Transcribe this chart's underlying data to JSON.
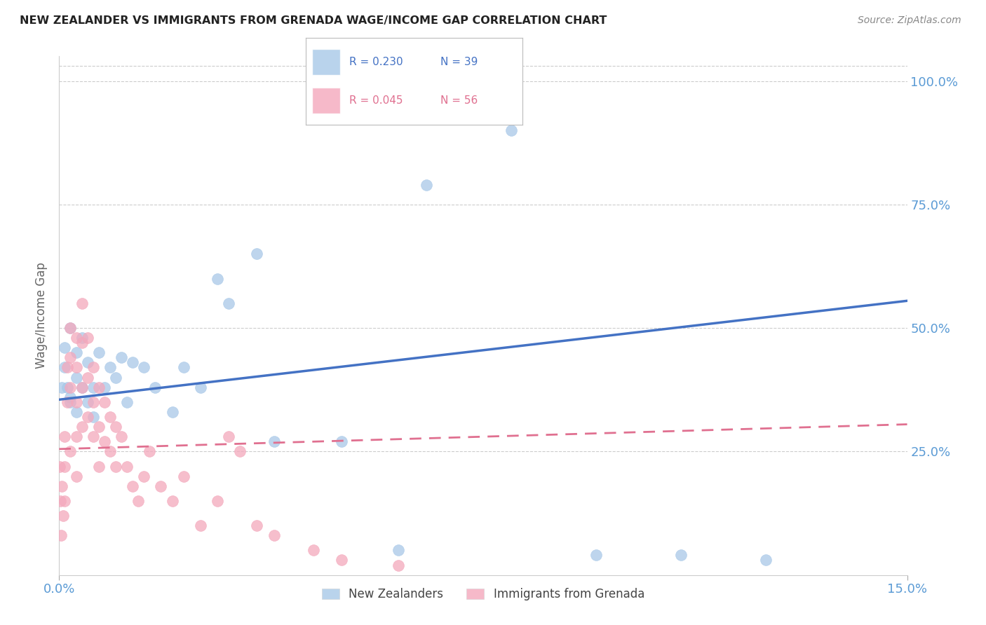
{
  "title": "NEW ZEALANDER VS IMMIGRANTS FROM GRENADA WAGE/INCOME GAP CORRELATION CHART",
  "source": "Source: ZipAtlas.com",
  "ylabel": "Wage/Income Gap",
  "xlabel": "",
  "xlim": [
    0.0,
    0.15
  ],
  "ylim": [
    0.0,
    1.05
  ],
  "ytick_labels": [
    "25.0%",
    "50.0%",
    "75.0%",
    "100.0%"
  ],
  "ytick_positions": [
    0.25,
    0.5,
    0.75,
    1.0
  ],
  "xtick_labels": [
    "0.0%",
    "15.0%"
  ],
  "xtick_positions": [
    0.0,
    0.15
  ],
  "background_color": "#ffffff",
  "grid_color": "#cccccc",
  "blue_color": "#a8c8e8",
  "pink_color": "#f4a8bc",
  "blue_line_color": "#4472c4",
  "pink_line_color": "#e07090",
  "label_color": "#5b9bd5",
  "R_blue": 0.23,
  "N_blue": 39,
  "R_pink": 0.045,
  "N_pink": 56,
  "blue_scatter_x": [
    0.0005,
    0.001,
    0.001,
    0.0015,
    0.002,
    0.002,
    0.002,
    0.003,
    0.003,
    0.003,
    0.004,
    0.004,
    0.005,
    0.005,
    0.006,
    0.006,
    0.007,
    0.008,
    0.009,
    0.01,
    0.011,
    0.012,
    0.013,
    0.015,
    0.017,
    0.02,
    0.022,
    0.025,
    0.028,
    0.03,
    0.035,
    0.038,
    0.05,
    0.06,
    0.065,
    0.08,
    0.095,
    0.11,
    0.125
  ],
  "blue_scatter_y": [
    0.38,
    0.42,
    0.46,
    0.38,
    0.36,
    0.5,
    0.35,
    0.45,
    0.4,
    0.33,
    0.48,
    0.38,
    0.35,
    0.43,
    0.38,
    0.32,
    0.45,
    0.38,
    0.42,
    0.4,
    0.44,
    0.35,
    0.43,
    0.42,
    0.38,
    0.33,
    0.42,
    0.38,
    0.6,
    0.55,
    0.65,
    0.27,
    0.27,
    0.05,
    0.79,
    0.9,
    0.04,
    0.04,
    0.03
  ],
  "pink_scatter_x": [
    0.0001,
    0.0002,
    0.0003,
    0.0005,
    0.0007,
    0.001,
    0.001,
    0.001,
    0.0015,
    0.0015,
    0.002,
    0.002,
    0.002,
    0.002,
    0.003,
    0.003,
    0.003,
    0.003,
    0.003,
    0.004,
    0.004,
    0.004,
    0.004,
    0.005,
    0.005,
    0.005,
    0.006,
    0.006,
    0.006,
    0.007,
    0.007,
    0.007,
    0.008,
    0.008,
    0.009,
    0.009,
    0.01,
    0.01,
    0.011,
    0.012,
    0.013,
    0.014,
    0.015,
    0.016,
    0.018,
    0.02,
    0.022,
    0.025,
    0.028,
    0.03,
    0.032,
    0.035,
    0.038,
    0.045,
    0.05,
    0.06
  ],
  "pink_scatter_y": [
    0.22,
    0.15,
    0.08,
    0.18,
    0.12,
    0.28,
    0.22,
    0.15,
    0.35,
    0.42,
    0.5,
    0.44,
    0.38,
    0.25,
    0.48,
    0.42,
    0.35,
    0.28,
    0.2,
    0.55,
    0.47,
    0.38,
    0.3,
    0.48,
    0.4,
    0.32,
    0.42,
    0.35,
    0.28,
    0.38,
    0.3,
    0.22,
    0.35,
    0.27,
    0.32,
    0.25,
    0.3,
    0.22,
    0.28,
    0.22,
    0.18,
    0.15,
    0.2,
    0.25,
    0.18,
    0.15,
    0.2,
    0.1,
    0.15,
    0.28,
    0.25,
    0.1,
    0.08,
    0.05,
    0.03,
    0.02
  ],
  "blue_line_x0": 0.0,
  "blue_line_y0": 0.355,
  "blue_line_x1": 0.15,
  "blue_line_y1": 0.555,
  "pink_line_x0": 0.0,
  "pink_line_y0": 0.255,
  "pink_line_x1": 0.15,
  "pink_line_y1": 0.305
}
